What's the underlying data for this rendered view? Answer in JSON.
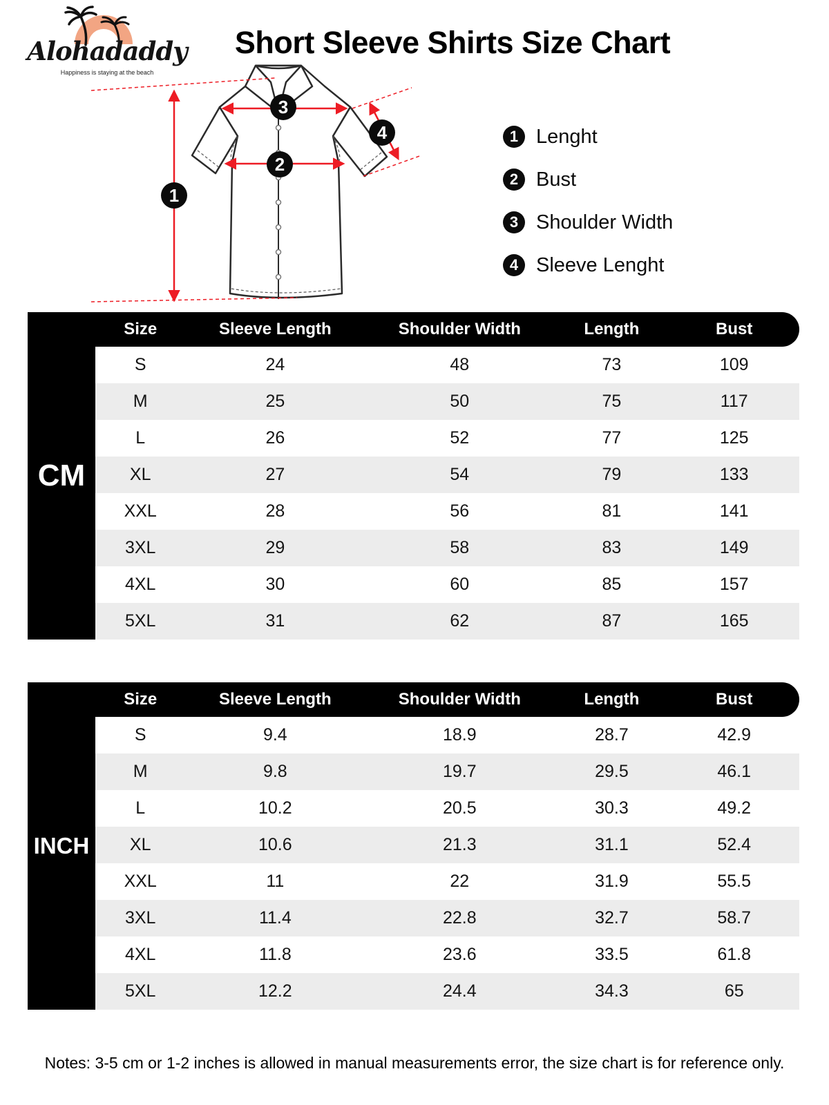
{
  "logo": {
    "brand": "Alohadaddy",
    "tagline": "Happiness is staying at the beach"
  },
  "title": "Short Sleeve Shirts Size Chart",
  "diagram": {
    "markers": [
      "1",
      "2",
      "3",
      "4"
    ]
  },
  "legend": {
    "items": [
      {
        "num": "1",
        "label": "Lenght"
      },
      {
        "num": "2",
        "label": "Bust"
      },
      {
        "num": "3",
        "label": "Shoulder Width"
      },
      {
        "num": "4",
        "label": "Sleeve Lenght"
      }
    ]
  },
  "colors": {
    "accent_red": "#ed1c24",
    "logo_orange": "#f2a583",
    "table_header_bg": "#000000",
    "row_alt_gray": "#ececec"
  },
  "tables": [
    {
      "unit": "CM",
      "columns": [
        "Size",
        "Sleeve Length",
        "Shoulder Width",
        "Length",
        "Bust"
      ],
      "rows": [
        [
          "S",
          "24",
          "48",
          "73",
          "109"
        ],
        [
          "M",
          "25",
          "50",
          "75",
          "117"
        ],
        [
          "L",
          "26",
          "52",
          "77",
          "125"
        ],
        [
          "XL",
          "27",
          "54",
          "79",
          "133"
        ],
        [
          "XXL",
          "28",
          "56",
          "81",
          "141"
        ],
        [
          "3XL",
          "29",
          "58",
          "83",
          "149"
        ],
        [
          "4XL",
          "30",
          "60",
          "85",
          "157"
        ],
        [
          "5XL",
          "31",
          "62",
          "87",
          "165"
        ]
      ]
    },
    {
      "unit": "INCH",
      "columns": [
        "Size",
        "Sleeve Length",
        "Shoulder Width",
        "Length",
        "Bust"
      ],
      "rows": [
        [
          "S",
          "9.4",
          "18.9",
          "28.7",
          "42.9"
        ],
        [
          "M",
          "9.8",
          "19.7",
          "29.5",
          "46.1"
        ],
        [
          "L",
          "10.2",
          "20.5",
          "30.3",
          "49.2"
        ],
        [
          "XL",
          "10.6",
          "21.3",
          "31.1",
          "52.4"
        ],
        [
          "XXL",
          "11",
          "22",
          "31.9",
          "55.5"
        ],
        [
          "3XL",
          "11.4",
          "22.8",
          "32.7",
          "58.7"
        ],
        [
          "4XL",
          "11.8",
          "23.6",
          "33.5",
          "61.8"
        ],
        [
          "5XL",
          "12.2",
          "24.4",
          "34.3",
          "65"
        ]
      ]
    }
  ],
  "notes": "Notes: 3-5 cm or 1-2 inches is allowed in manual measurements error, the size chart is for reference only."
}
